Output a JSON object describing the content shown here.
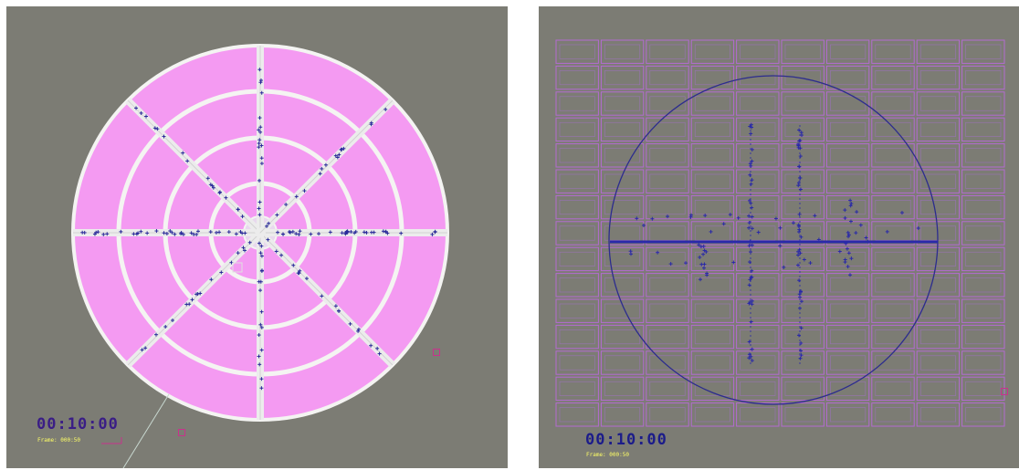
{
  "left_panel": {
    "timer": "00:10:00",
    "frame_label": "Frame: 000:50",
    "colors": {
      "background": "#7c7c74",
      "sector_fill": "#f49af2",
      "ring_line": "#f4f4f2",
      "marker": "#2a2a9a"
    }
  },
  "right_panel": {
    "timer": "00:10:00",
    "frame_label": "Frame: 000:50",
    "colors": {
      "background": "#7c7c74",
      "grid_cell": "#b46ad2",
      "circle": "#2c2c8e",
      "marker": "#2a2aa8"
    }
  }
}
